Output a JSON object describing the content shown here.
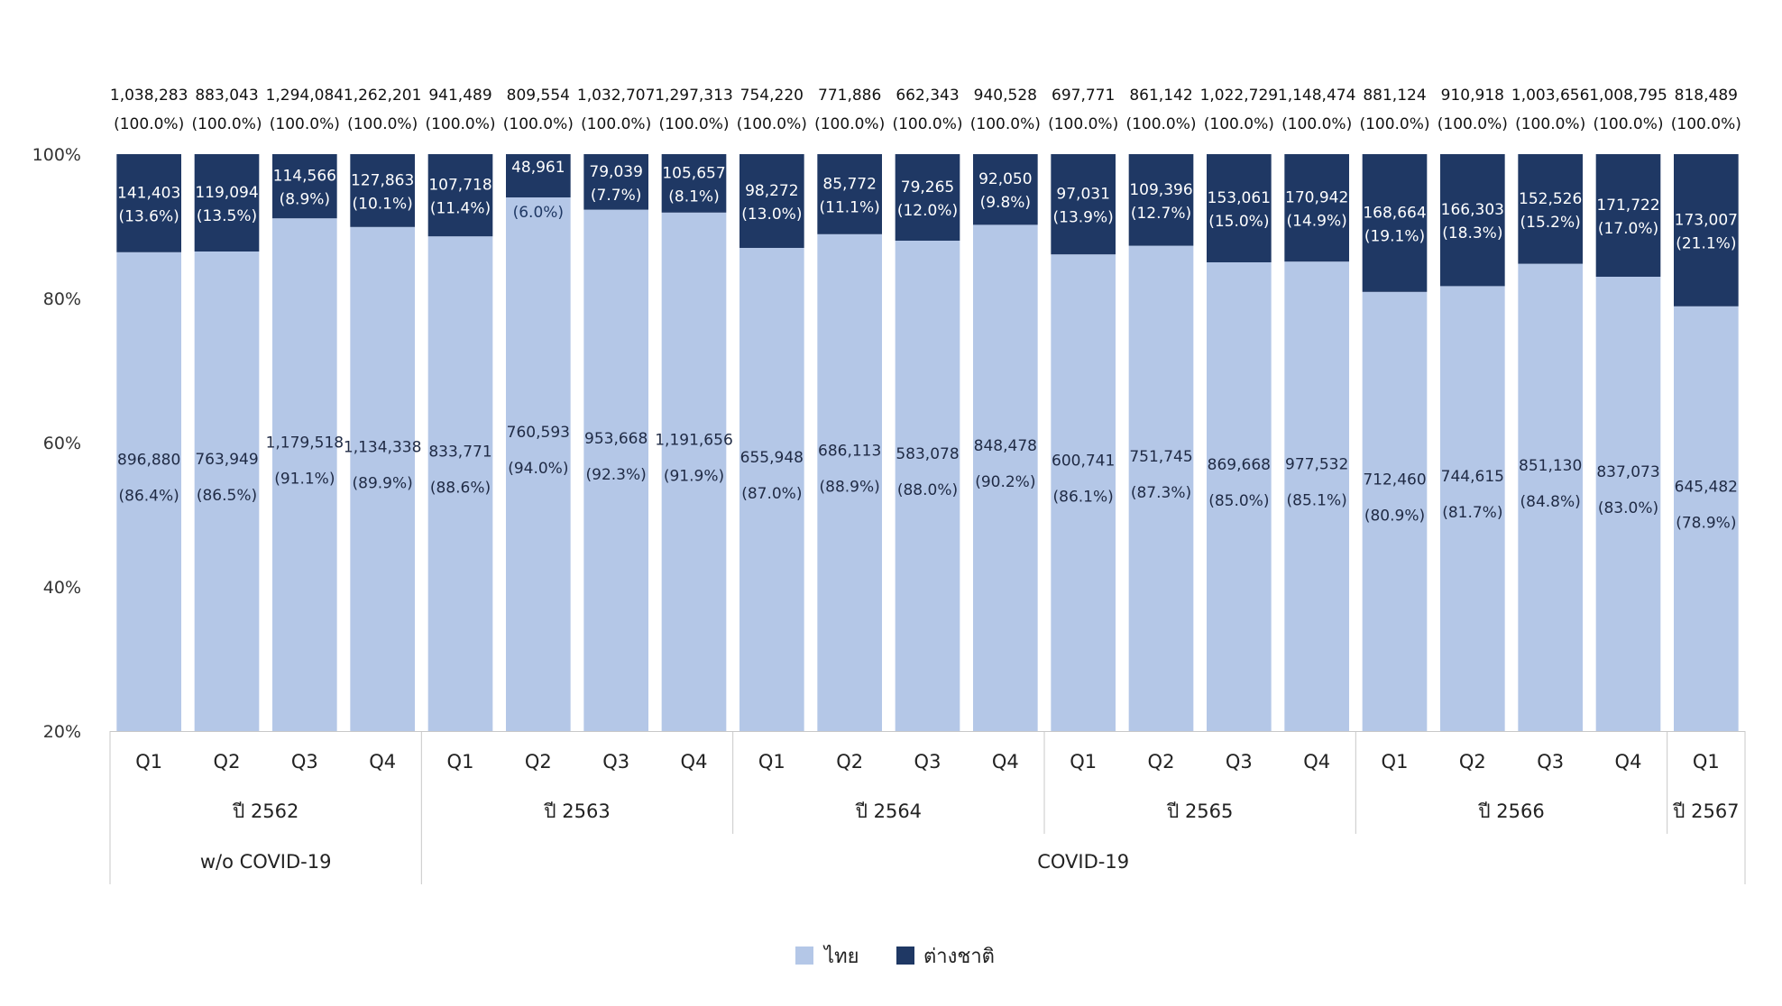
{
  "chart_data": {
    "type": "bar",
    "stacked": true,
    "normalized": true,
    "yticks": [
      "20%",
      "40%",
      "60%",
      "80%",
      "100%"
    ],
    "ylim": [
      20,
      100
    ],
    "grid": false,
    "legend_position": "bottom-center",
    "categories": [
      "Q1",
      "Q2",
      "Q3",
      "Q4",
      "Q1",
      "Q2",
      "Q3",
      "Q4",
      "Q1",
      "Q2",
      "Q3",
      "Q4",
      "Q1",
      "Q2",
      "Q3",
      "Q4",
      "Q1",
      "Q2",
      "Q3",
      "Q4",
      "Q1"
    ],
    "years": [
      {
        "label": "ปี 2562",
        "count": 4
      },
      {
        "label": "ปี 2563",
        "count": 4
      },
      {
        "label": "ปี 2564",
        "count": 4
      },
      {
        "label": "ปี 2565",
        "count": 4
      },
      {
        "label": "ปี 2566",
        "count": 4
      },
      {
        "label": "ปี 2567",
        "count": 1
      }
    ],
    "periods": [
      {
        "label": "w/o COVID-19",
        "count": 4
      },
      {
        "label": "COVID-19",
        "count": 17
      }
    ],
    "totals": [
      "1,038,283",
      "883,043",
      "1,294,084",
      "1,262,201",
      "941,489",
      "809,554",
      "1,032,707",
      "1,297,313",
      "754,220",
      "771,886",
      "662,343",
      "940,528",
      "697,771",
      "861,142",
      "1,022,729",
      "1,148,474",
      "881,124",
      "910,918",
      "1,003,656",
      "1,008,795",
      "818,489"
    ],
    "total_pct_label": "(100.0%)",
    "series": [
      {
        "name": "ไทย",
        "color": "#b4c7e7",
        "values": [
          86.4,
          86.5,
          91.1,
          89.9,
          88.6,
          94.0,
          92.3,
          91.9,
          87.0,
          88.9,
          88.0,
          90.2,
          86.1,
          87.3,
          85.0,
          85.1,
          80.9,
          81.7,
          84.8,
          83.0,
          78.9
        ],
        "counts": [
          "896,880",
          "763,949",
          "1,179,518",
          "1,134,338",
          "833,771",
          "760,593",
          "953,668",
          "1,191,656",
          "655,948",
          "686,113",
          "583,078",
          "848,478",
          "600,741",
          "751,745",
          "869,668",
          "977,532",
          "712,460",
          "744,615",
          "851,130",
          "837,073",
          "645,482"
        ],
        "pct_labels": [
          "(86.4%)",
          "(86.5%)",
          "(91.1%)",
          "(89.9%)",
          "(88.6%)",
          "(94.0%)",
          "(92.3%)",
          "(91.9%)",
          "(87.0%)",
          "(88.9%)",
          "(88.0%)",
          "(90.2%)",
          "(86.1%)",
          "(87.3%)",
          "(85.0%)",
          "(85.1%)",
          "(80.9%)",
          "(81.7%)",
          "(84.8%)",
          "(83.0%)",
          "(78.9%)"
        ]
      },
      {
        "name": "ต่างชาติ",
        "color": "#1f3864",
        "values": [
          13.6,
          13.5,
          8.9,
          10.1,
          11.4,
          6.0,
          7.7,
          8.1,
          13.0,
          11.1,
          12.0,
          9.8,
          13.9,
          12.7,
          15.0,
          14.9,
          19.1,
          18.3,
          15.2,
          17.0,
          21.1
        ],
        "counts": [
          "141,403",
          "119,094",
          "114,566",
          "127,863",
          "107,718",
          "48,961",
          "79,039",
          "105,657",
          "98,272",
          "85,772",
          "79,265",
          "92,050",
          "97,031",
          "109,396",
          "153,061",
          "170,942",
          "168,664",
          "166,303",
          "152,526",
          "171,722",
          "173,007"
        ],
        "pct_labels": [
          "(13.6%)",
          "(13.5%)",
          "(8.9%)",
          "(10.1%)",
          "(11.4%)",
          "(6.0%)",
          "(7.7%)",
          "(8.1%)",
          "(13.0%)",
          "(11.1%)",
          "(12.0%)",
          "(9.8%)",
          "(13.9%)",
          "(12.7%)",
          "(15.0%)",
          "(14.9%)",
          "(19.1%)",
          "(18.3%)",
          "(15.2%)",
          "(17.0%)",
          "(21.1%)"
        ]
      }
    ]
  }
}
